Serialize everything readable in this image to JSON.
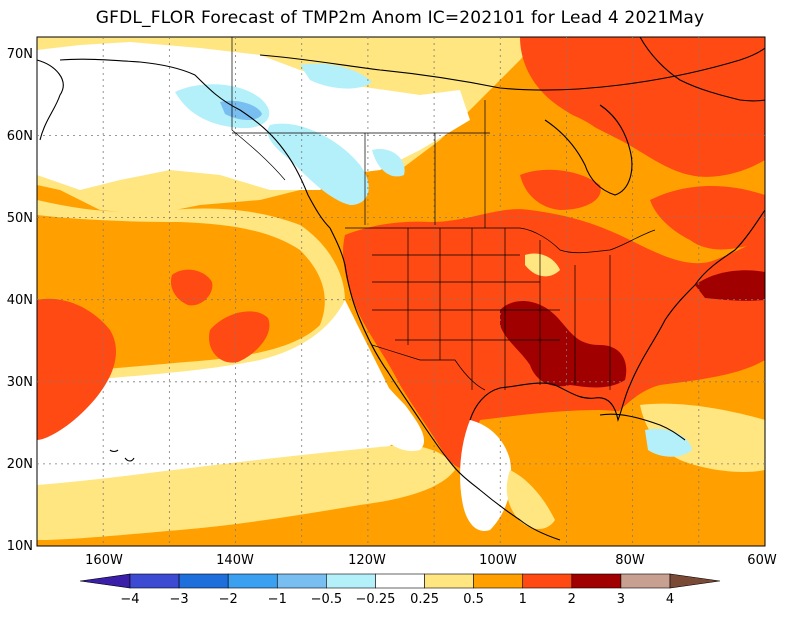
{
  "title": "GFDL_FLOR Forecast of TMP2m Anom IC=202101 for Lead 4 2021May",
  "lat_labels": [
    "70N",
    "60N",
    "50N",
    "40N",
    "30N",
    "20N",
    "10N"
  ],
  "lon_labels": [
    "160W",
    "140W",
    "120W",
    "100W",
    "80W",
    "60W"
  ],
  "colorbar": {
    "labels": [
      "-4",
      "-3",
      "-2",
      "-1",
      "-0.5",
      "-0.25",
      "0.25",
      "0.5",
      "1",
      "2",
      "3",
      "4"
    ],
    "colors": [
      "#3b1fa8",
      "#3c4bd2",
      "#1e6fdc",
      "#3ca0f0",
      "#78bef0",
      "#b4f0fa",
      "#ffffff",
      "#ffe680",
      "#ffa000",
      "#ff4a14",
      "#a00000",
      "#c8a092",
      "#7a4a36"
    ]
  },
  "colors": {
    "weak_warm": "#ffe680",
    "warm": "#ffa000",
    "hot": "#ff4a14",
    "very_hot": "#a00000",
    "cool": "#b4f0fa",
    "cooler": "#78bef0",
    "neutral": "#ffffff"
  }
}
